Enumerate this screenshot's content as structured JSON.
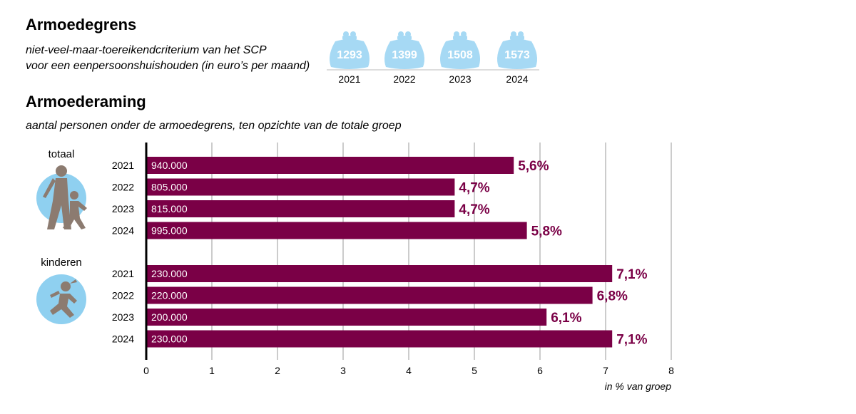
{
  "section1": {
    "title": "Armoedegrens",
    "subtitle_line1": "niet-veel-maar-toereikendcriterium van het SCP",
    "subtitle_line2": "voor een eenpersoonshuishouden (in euro’s per maand)",
    "purses": [
      {
        "year": "2021",
        "amount": "1293"
      },
      {
        "year": "2022",
        "amount": "1399"
      },
      {
        "year": "2023",
        "amount": "1508"
      },
      {
        "year": "2024",
        "amount": "1573"
      }
    ]
  },
  "section2": {
    "title": "Armoederaming",
    "subtitle": "aantal personen onder de armoedegrens, ten opzichte van de totale groep"
  },
  "colors": {
    "bar": "#7a0046",
    "value_label": "#7a0046",
    "icon_circle": "#8fd0f0",
    "figure": "#8c7b70",
    "purse": "#a6d9f4",
    "grid": "#9a9a9a"
  },
  "icons": [
    "purse-icon",
    "family-walking-icon",
    "child-running-icon"
  ],
  "chart_data": {
    "type": "bar",
    "orientation": "horizontal",
    "xlabel": "in % van groep",
    "xlim": [
      0,
      8
    ],
    "xticks": [
      "0",
      "1",
      "2",
      "3",
      "4",
      "5",
      "6",
      "7",
      "8"
    ],
    "grid": true,
    "groups": [
      {
        "name": "totaal",
        "icon": "family-walking-icon",
        "bars": [
          {
            "year": "2021",
            "count": "940.000",
            "value": 5.6,
            "label": "5,6%"
          },
          {
            "year": "2022",
            "count": "805.000",
            "value": 4.7,
            "label": "4,7%"
          },
          {
            "year": "2023",
            "count": "815.000",
            "value": 4.7,
            "label": "4,7%"
          },
          {
            "year": "2024",
            "count": "995.000",
            "value": 5.8,
            "label": "5,8%"
          }
        ]
      },
      {
        "name": "kinderen",
        "icon": "child-running-icon",
        "bars": [
          {
            "year": "2021",
            "count": "230.000",
            "value": 7.1,
            "label": "7,1%"
          },
          {
            "year": "2022",
            "count": "220.000",
            "value": 6.8,
            "label": "6,8%"
          },
          {
            "year": "2023",
            "count": "200.000",
            "value": 6.1,
            "label": "6,1%"
          },
          {
            "year": "2024",
            "count": "230.000",
            "value": 7.1,
            "label": "7,1%"
          }
        ]
      }
    ]
  }
}
